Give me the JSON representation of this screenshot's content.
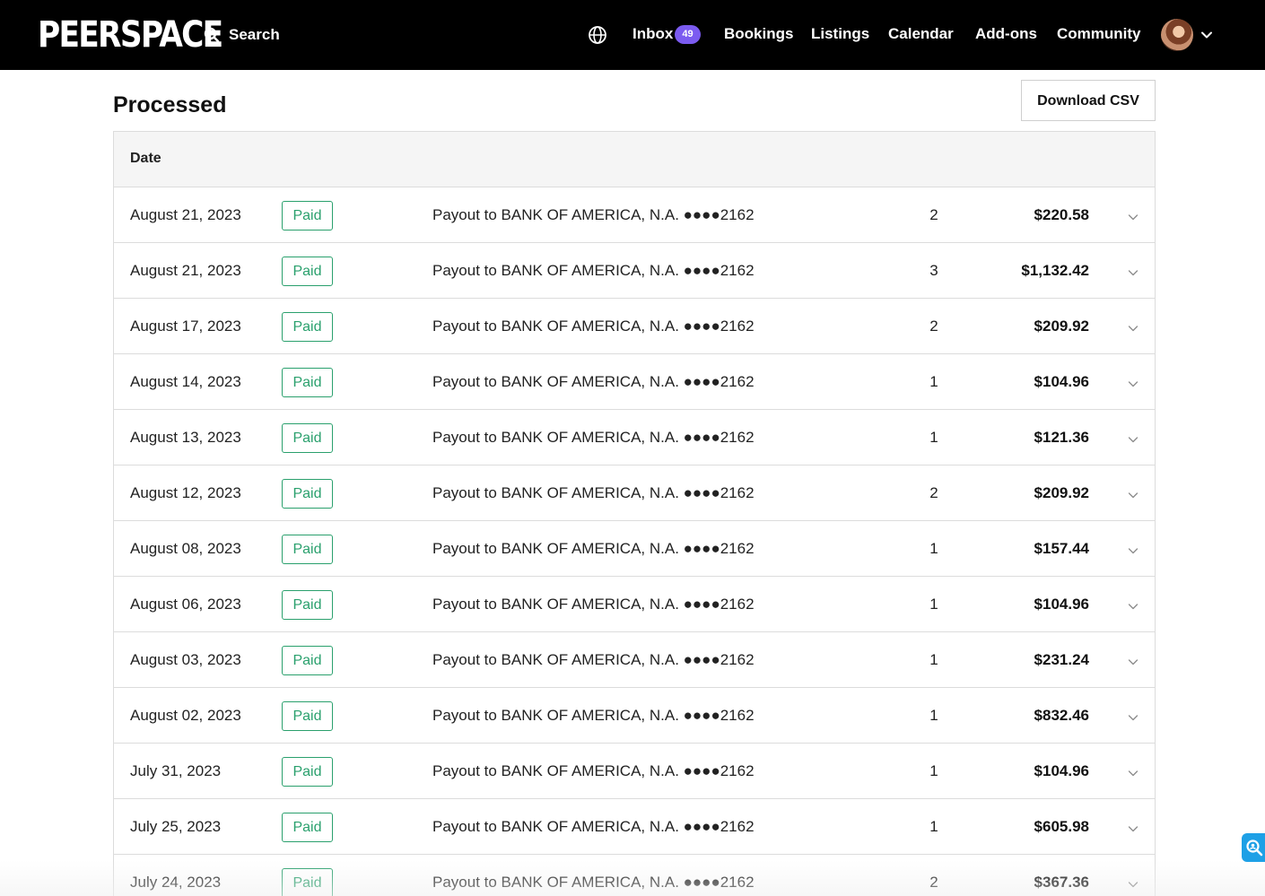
{
  "nav": {
    "logo": "PEERSPACE",
    "search_label": "Search",
    "links": [
      {
        "label": "Inbox",
        "badge": "49"
      },
      {
        "label": "Bookings"
      },
      {
        "label": "Listings"
      },
      {
        "label": "Calendar"
      },
      {
        "label": "Add-ons"
      },
      {
        "label": "Community"
      }
    ],
    "icons": {
      "search": "search-icon",
      "language": "globe-icon",
      "avatar_menu": "chevron-down-icon"
    },
    "badge_color": "#7b5bf0"
  },
  "page": {
    "title": "Processed",
    "download_label": "Download CSV"
  },
  "table": {
    "header_date": "Date",
    "status_color": "#2aa06d",
    "rows": [
      {
        "date": "August 21, 2023",
        "status": "Paid",
        "description": "Payout to BANK OF AMERICA, N.A. ●●●●2162",
        "count": "2",
        "amount": "$220.58"
      },
      {
        "date": "August 21, 2023",
        "status": "Paid",
        "description": "Payout to BANK OF AMERICA, N.A. ●●●●2162",
        "count": "3",
        "amount": "$1,132.42"
      },
      {
        "date": "August 17, 2023",
        "status": "Paid",
        "description": "Payout to BANK OF AMERICA, N.A. ●●●●2162",
        "count": "2",
        "amount": "$209.92"
      },
      {
        "date": "August 14, 2023",
        "status": "Paid",
        "description": "Payout to BANK OF AMERICA, N.A. ●●●●2162",
        "count": "1",
        "amount": "$104.96"
      },
      {
        "date": "August 13, 2023",
        "status": "Paid",
        "description": "Payout to BANK OF AMERICA, N.A. ●●●●2162",
        "count": "1",
        "amount": "$121.36"
      },
      {
        "date": "August 12, 2023",
        "status": "Paid",
        "description": "Payout to BANK OF AMERICA, N.A. ●●●●2162",
        "count": "2",
        "amount": "$209.92"
      },
      {
        "date": "August 08, 2023",
        "status": "Paid",
        "description": "Payout to BANK OF AMERICA, N.A. ●●●●2162",
        "count": "1",
        "amount": "$157.44"
      },
      {
        "date": "August 06, 2023",
        "status": "Paid",
        "description": "Payout to BANK OF AMERICA, N.A. ●●●●2162",
        "count": "1",
        "amount": "$104.96"
      },
      {
        "date": "August 03, 2023",
        "status": "Paid",
        "description": "Payout to BANK OF AMERICA, N.A. ●●●●2162",
        "count": "1",
        "amount": "$231.24"
      },
      {
        "date": "August 02, 2023",
        "status": "Paid",
        "description": "Payout to BANK OF AMERICA, N.A. ●●●●2162",
        "count": "1",
        "amount": "$832.46"
      },
      {
        "date": "July 31, 2023",
        "status": "Paid",
        "description": "Payout to BANK OF AMERICA, N.A. ●●●●2162",
        "count": "1",
        "amount": "$104.96"
      },
      {
        "date": "July 25, 2023",
        "status": "Paid",
        "description": "Payout to BANK OF AMERICA, N.A. ●●●●2162",
        "count": "1",
        "amount": "$605.98"
      },
      {
        "date": "July 24, 2023",
        "status": "Paid",
        "description": "Payout to BANK OF AMERICA, N.A. ●●●●2162",
        "count": "2",
        "amount": "$367.36"
      }
    ]
  },
  "widget": {
    "icon": "search-help-icon",
    "color": "#1ea0e6"
  }
}
